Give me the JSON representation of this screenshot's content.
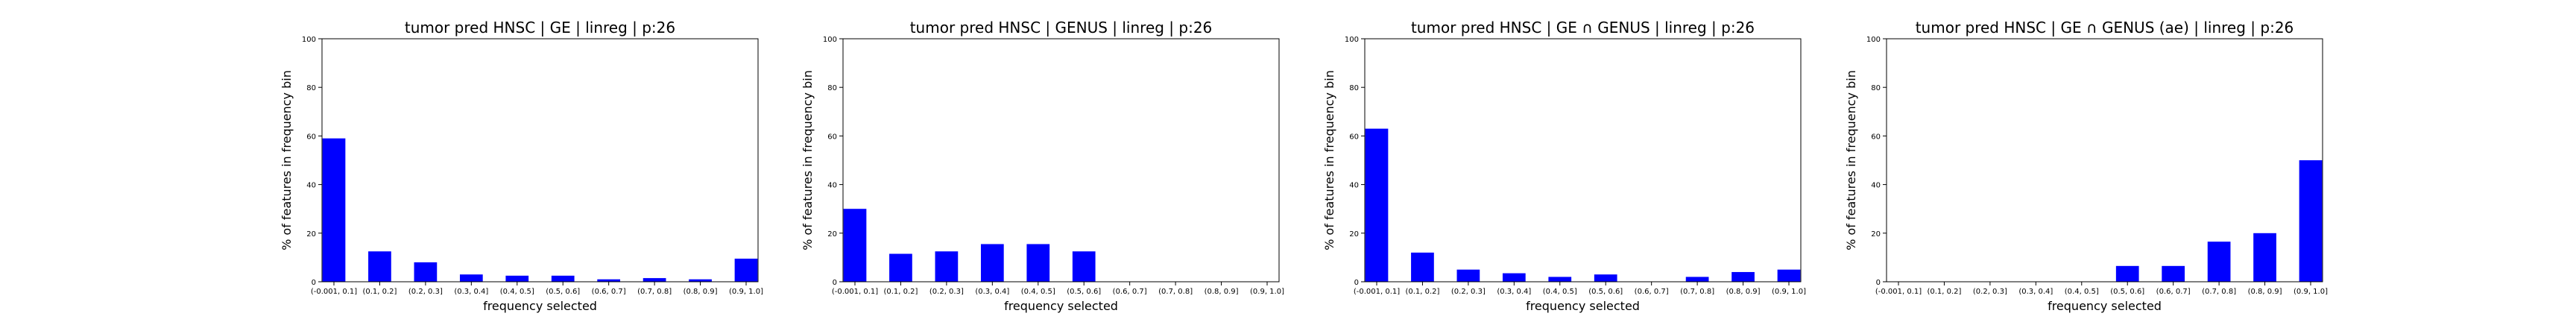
{
  "chart_data": [
    {
      "type": "bar",
      "title": "tumor pred HNSC | GE | linreg | p:26",
      "xlabel": "frequency selected",
      "ylabel": "% of features in frequency bin",
      "ylim": [
        0,
        100
      ],
      "yticks": [
        "0",
        "20",
        "40",
        "60",
        "80",
        "100"
      ],
      "categories": [
        "(-0.001, 0.1]",
        "(0.1, 0.2]",
        "(0.2, 0.3]",
        "(0.3, 0.4]",
        "(0.4, 0.5]",
        "(0.5, 0.6]",
        "(0.6, 0.7]",
        "(0.7, 0.8]",
        "(0.8, 0.9]",
        "(0.9, 1.0]"
      ],
      "values": [
        59,
        12.5,
        8,
        3,
        2.5,
        2.5,
        1,
        1.5,
        1,
        9.5
      ],
      "color": "#0000ff",
      "grid": false,
      "legend": "none"
    },
    {
      "type": "bar",
      "title": "tumor pred HNSC | GENUS | linreg | p:26",
      "xlabel": "frequency selected",
      "ylabel": "% of features in frequency bin",
      "ylim": [
        0,
        100
      ],
      "yticks": [
        "0",
        "20",
        "40",
        "60",
        "80",
        "100"
      ],
      "categories": [
        "(-0.001, 0.1]",
        "(0.1, 0.2]",
        "(0.2, 0.3]",
        "(0.3, 0.4]",
        "(0.4, 0.5]",
        "(0.5, 0.6]",
        "(0.6, 0.7]",
        "(0.7, 0.8]",
        "(0.8, 0.9]",
        "(0.9, 1.0]"
      ],
      "values": [
        30,
        11.5,
        12.5,
        15.5,
        15.5,
        12.5,
        0,
        0,
        0,
        0
      ],
      "color": "#0000ff",
      "grid": false,
      "legend": "none"
    },
    {
      "type": "bar",
      "title": "tumor pred HNSC | GE ∩ GENUS | linreg | p:26",
      "xlabel": "frequency selected",
      "ylabel": "% of features in frequency bin",
      "ylim": [
        0,
        100
      ],
      "yticks": [
        "0",
        "20",
        "40",
        "60",
        "80",
        "100"
      ],
      "categories": [
        "(-0.001, 0.1]",
        "(0.1, 0.2]",
        "(0.2, 0.3]",
        "(0.3, 0.4]",
        "(0.4, 0.5]",
        "(0.5, 0.6]",
        "(0.6, 0.7]",
        "(0.7, 0.8]",
        "(0.8, 0.9]",
        "(0.9, 1.0]"
      ],
      "values": [
        63,
        12,
        5,
        3.5,
        2,
        3,
        0,
        2,
        4,
        5
      ],
      "color": "#0000ff",
      "grid": false,
      "legend": "none"
    },
    {
      "type": "bar",
      "title": "tumor pred HNSC | GE ∩ GENUS (ae) | linreg | p:26",
      "xlabel": "frequency selected",
      "ylabel": "% of features in frequency bin",
      "ylim": [
        0,
        100
      ],
      "yticks": [
        "0",
        "20",
        "40",
        "60",
        "80",
        "100"
      ],
      "categories": [
        "(-0.001, 0.1]",
        "(0.1, 0.2]",
        "(0.2, 0.3]",
        "(0.3, 0.4]",
        "(0.4, 0.5]",
        "(0.5, 0.6]",
        "(0.6, 0.7]",
        "(0.7, 0.8]",
        "(0.8, 0.9]",
        "(0.9, 1.0]"
      ],
      "values": [
        0,
        0,
        0,
        0,
        0,
        6.5,
        6.5,
        16.5,
        20,
        50
      ],
      "color": "#0000ff",
      "grid": false,
      "legend": "none"
    }
  ]
}
